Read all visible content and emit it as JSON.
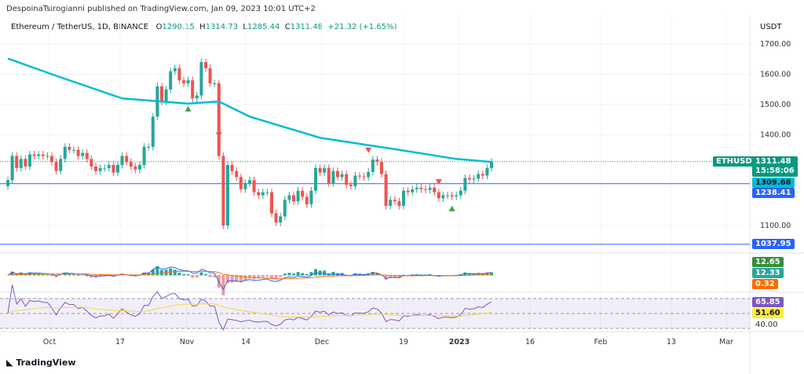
{
  "header": {
    "published": "DespoinaTsirogianni published on TradingView.com, Jan 09, 2023 10:01 UTC+2",
    "symbol": "Ethereum / TetherUS, 1D, BINANCE",
    "o_label": "O",
    "o": "1290.15",
    "h_label": "H",
    "h": "1314.73",
    "l_label": "L",
    "l": "1285.44",
    "c_label": "C",
    "c": "1311.48",
    "change": "+21.32 (+1.65%)"
  },
  "axis": {
    "currency": "USDT"
  },
  "footer": {
    "brand": "TradingView"
  },
  "colors": {
    "up": "#26a69a",
    "down": "#ef5350",
    "ma": "#00bcd4",
    "hline": "#2962ff",
    "rsi": "#7e57c2",
    "rsi_ma": "#ffeb3b",
    "macd": "#2962ff",
    "signal": "#ff6d00"
  },
  "tags": {
    "symbol": "ETHUSDT",
    "price": "1311.48",
    "countdown": "15:58:06",
    "ma": "1309.68",
    "level1": "1238.41",
    "level2": "1037.95",
    "macd_hist": "12.65",
    "macd": "12.33",
    "signal": "0.32",
    "rsi": "65.85",
    "rsi_ma": "51.60",
    "rsi_tick": "40.00"
  },
  "chart_data": {
    "type": "candlestick",
    "start_date": "2022-09-21",
    "interval": "1D",
    "ylim": [
      1040,
      1730
    ],
    "y_ticks": [
      "1700.00",
      "1600.00",
      "1500.00",
      "1400.00",
      "1100.00"
    ],
    "x_ticks": [
      "Oct",
      "17",
      "Nov",
      "14",
      "Dec",
      "19",
      "2023",
      "16",
      "Feb",
      "13",
      "Mar"
    ],
    "closes": [
      1250,
      1330,
      1290,
      1320,
      1295,
      1335,
      1330,
      1335,
      1330,
      1330,
      1310,
      1280,
      1320,
      1360,
      1350,
      1350,
      1330,
      1340,
      1320,
      1295,
      1280,
      1290,
      1290,
      1300,
      1275,
      1300,
      1330,
      1310,
      1295,
      1285,
      1300,
      1360,
      1360,
      1460,
      1560,
      1510,
      1550,
      1610,
      1620,
      1580,
      1570,
      1580,
      1520,
      1530,
      1640,
      1620,
      1570,
      1570,
      1330,
      1100,
      1300,
      1280,
      1260,
      1220,
      1240,
      1250,
      1210,
      1200,
      1210,
      1210,
      1140,
      1110,
      1130,
      1185,
      1200,
      1180,
      1215,
      1195,
      1170,
      1215,
      1290,
      1275,
      1290,
      1240,
      1280,
      1260,
      1270,
      1235,
      1230,
      1265,
      1262,
      1260,
      1277,
      1318,
      1310,
      1270,
      1165,
      1185,
      1180,
      1165,
      1215,
      1210,
      1220,
      1225,
      1220,
      1218,
      1225,
      1210,
      1190,
      1200,
      1200,
      1196,
      1200,
      1215,
      1257,
      1252,
      1255,
      1270,
      1265,
      1290,
      1311.48
    ],
    "moving_average": [
      [
        0,
        1652
      ],
      [
        10,
        1600
      ],
      [
        26,
        1520
      ],
      [
        41,
        1503
      ],
      [
        48,
        1510
      ],
      [
        55,
        1460
      ],
      [
        71,
        1390
      ],
      [
        89,
        1350
      ],
      [
        102,
        1320
      ],
      [
        110,
        1310
      ]
    ],
    "horizontal_levels": [
      1238.41,
      1037.95
    ],
    "rsi_levels": [
      70,
      50,
      30
    ]
  }
}
